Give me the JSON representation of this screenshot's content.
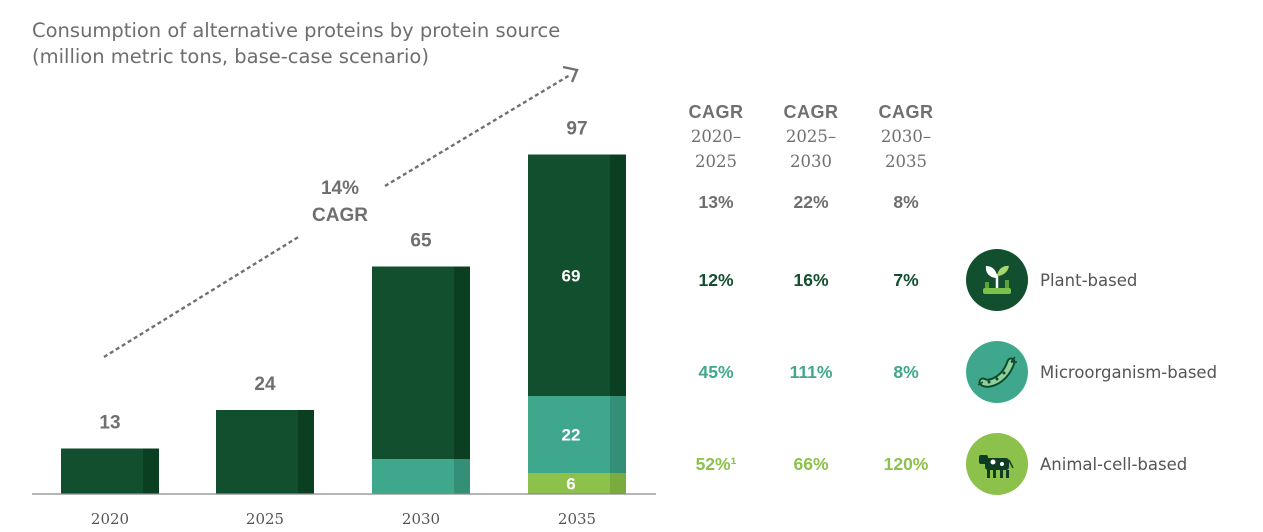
{
  "title": {
    "line1": "Consumption of alternative proteins by protein source",
    "line2": "(million metric tons, base-case scenario)"
  },
  "chart_data": {
    "type": "bar",
    "stacked": true,
    "categories": [
      "2020",
      "2025",
      "2030",
      "2035"
    ],
    "series": [
      {
        "name": "Animal-cell-based",
        "values": [
          0,
          0,
          0,
          6
        ]
      },
      {
        "name": "Microorganism-based",
        "values": [
          0,
          0,
          10,
          22
        ]
      },
      {
        "name": "Plant-based",
        "values": [
          13,
          24,
          55,
          69
        ]
      }
    ],
    "totals": [
      13,
      24,
      65,
      97
    ],
    "segment_labels": [
      {
        "category": "2035",
        "series": "Plant-based",
        "text": "69"
      },
      {
        "category": "2035",
        "series": "Microorganism-based",
        "text": "22"
      },
      {
        "category": "2035",
        "series": "Animal-cell-based",
        "text": "6"
      }
    ],
    "trend_annotation": {
      "line1": "14%",
      "line2": "CAGR"
    },
    "ylim": [
      0,
      100
    ],
    "grid": false,
    "title": "Consumption of alternative proteins by protein source",
    "subtitle": "(million metric tons, base-case scenario)",
    "xlabel": "",
    "ylabel": ""
  },
  "colors": {
    "plant": "#124f2e",
    "plant_shade": "#0b3f22",
    "micro": "#3fa88c",
    "micro_shade": "#348f77",
    "cell": "#8cc14c",
    "cell_shade": "#7aab3f",
    "micro_text": "#3fa88c",
    "cell_text": "#8cc14c",
    "gray_text": "#6f6f6f"
  },
  "cagr_table": {
    "headers": [
      {
        "label": "CAGR",
        "line2": "2020–",
        "line3": "2025"
      },
      {
        "label": "CAGR",
        "line2": "2025–",
        "line3": "2030"
      },
      {
        "label": "CAGR",
        "line2": "2030–",
        "line3": "2035"
      }
    ],
    "total_row": [
      "13%",
      "22%",
      "8%"
    ],
    "plant_row": [
      "12%",
      "16%",
      "7%"
    ],
    "micro_row": [
      "45%",
      "111%",
      "8%"
    ],
    "cell_row": [
      "52%¹",
      "66%",
      "120%"
    ]
  },
  "legend": {
    "plant": {
      "label": "Plant-based",
      "icon": "plant-sprout-icon"
    },
    "micro": {
      "label": "Microorganism-based",
      "icon": "microorganism-icon"
    },
    "cell": {
      "label": "Animal-cell-based",
      "icon": "cow-icon"
    }
  }
}
